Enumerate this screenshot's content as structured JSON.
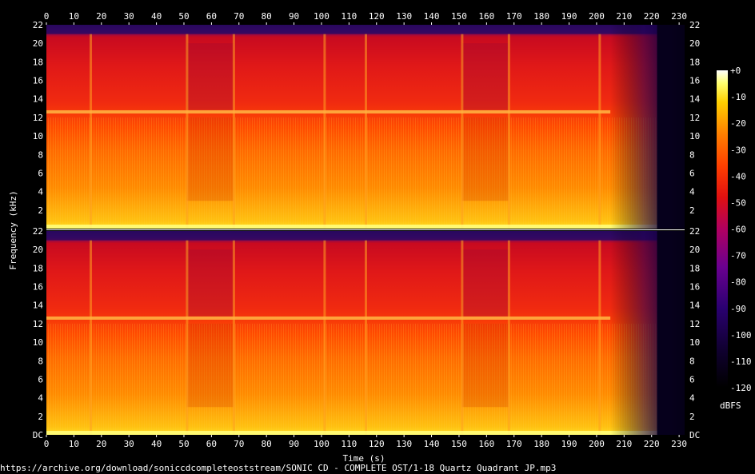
{
  "chart_data": {
    "type": "heatmap",
    "subtype": "spectrogram",
    "channels": 2,
    "xlabel": "Time (s)",
    "ylabel": "Frequency (kHz)",
    "xlim": [
      0,
      232
    ],
    "ylim_khz": [
      0,
      22
    ],
    "x_ticks": [
      "0",
      "10",
      "20",
      "30",
      "40",
      "50",
      "60",
      "70",
      "80",
      "90",
      "100",
      "110",
      "120",
      "130",
      "140",
      "150",
      "160",
      "170",
      "180",
      "190",
      "200",
      "210",
      "220",
      "230"
    ],
    "y_ticks": [
      "DC",
      "2",
      "4",
      "6",
      "8",
      "10",
      "12",
      "14",
      "16",
      "18",
      "20",
      "22"
    ],
    "colorbar": {
      "unit": "dBFS",
      "range": [
        -120,
        0
      ],
      "ticks": [
        "+0",
        "-10",
        "-20",
        "-30",
        "-40",
        "-50",
        "-60",
        "-70",
        "-80",
        "-90",
        "-100",
        "-110",
        "-120"
      ],
      "stops": [
        "#000000",
        "#1a0040",
        "#3a007a",
        "#8a0080",
        "#d01010",
        "#ff6000",
        "#ffb000",
        "#ffff60",
        "#ffffff"
      ]
    },
    "features": {
      "track_end_s": 222,
      "fade_start_s": 205,
      "bright_band_khz": 12.6,
      "lowpass_top_khz": 21,
      "section_breaks_s": [
        16,
        51,
        68,
        101,
        116,
        151,
        168,
        201
      ],
      "quiet_sections": [
        [
          51,
          68
        ],
        [
          151,
          168
        ]
      ]
    }
  },
  "source_url": "https://archive.org/download/soniccdcompleteoststream/SONIC CD - COMPLETE OST/1-18 Quartz Quadrant JP.mp3"
}
